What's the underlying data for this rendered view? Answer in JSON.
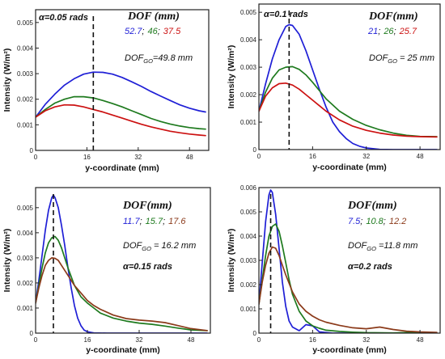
{
  "chart_data": [
    {
      "type": "line",
      "xlabel": "y-coordinate (mm)",
      "ylabel": "Intensity (W/m²)",
      "xlim": [
        0,
        54
      ],
      "ylim": [
        0,
        0.0055
      ],
      "xticks": [
        "0",
        "16",
        "32",
        "48"
      ],
      "yticks": [
        "0",
        "0.001",
        "0.002",
        "0.003",
        "0.004",
        "0.005"
      ],
      "alpha_label": "α=0.05 rads",
      "dof_header": "DOF (mm)",
      "dof_values": [
        "52.7",
        "46",
        "37.5"
      ],
      "dof_sep": ";",
      "dofgo_text": "=49.8 mm",
      "dashed_x": 18,
      "series": [
        {
          "color": "#1f1fd6",
          "x": [
            0,
            3,
            6,
            9,
            12,
            15,
            18,
            21,
            24,
            27,
            30,
            33,
            36,
            39,
            42,
            45,
            48,
            51,
            53
          ],
          "values": [
            0.0013,
            0.0018,
            0.0022,
            0.00255,
            0.0028,
            0.00298,
            0.00306,
            0.00305,
            0.00298,
            0.00285,
            0.00268,
            0.0025,
            0.0023,
            0.00212,
            0.00195,
            0.00178,
            0.00165,
            0.00155,
            0.0015
          ]
        },
        {
          "color": "#1e7a1e",
          "x": [
            0,
            3,
            6,
            9,
            12,
            15,
            18,
            21,
            24,
            27,
            30,
            33,
            36,
            39,
            42,
            45,
            48,
            51,
            53
          ],
          "values": [
            0.0013,
            0.0016,
            0.00185,
            0.002,
            0.0021,
            0.0021,
            0.00205,
            0.00195,
            0.00183,
            0.0017,
            0.00155,
            0.0014,
            0.00125,
            0.00113,
            0.00103,
            0.00095,
            0.00089,
            0.00085,
            0.00083
          ]
        },
        {
          "color": "#cc1111",
          "x": [
            0,
            3,
            6,
            9,
            12,
            15,
            18,
            21,
            24,
            27,
            30,
            33,
            36,
            39,
            42,
            45,
            48,
            51,
            53
          ],
          "values": [
            0.0013,
            0.00155,
            0.0017,
            0.00178,
            0.00177,
            0.0017,
            0.0016,
            0.0015,
            0.00138,
            0.00126,
            0.00114,
            0.00102,
            0.00092,
            0.00083,
            0.00075,
            0.00069,
            0.00064,
            0.0006,
            0.00058
          ]
        }
      ]
    },
    {
      "type": "line",
      "xlabel": "y-coordinate (mm)",
      "ylabel": "Intensity (W/m²)",
      "xlim": [
        0,
        54
      ],
      "ylim": [
        0,
        0.0053
      ],
      "xticks": [
        "0",
        "16",
        "32",
        "48"
      ],
      "yticks": [
        "0",
        "0.001",
        "0.002",
        "0.003",
        "0.004",
        "0.005"
      ],
      "alpha_label": "α=0.1 rads",
      "dof_header": "DOF(mm)",
      "dof_values": [
        "21",
        "26",
        "25.7"
      ],
      "dof_sep": ";",
      "dofgo_text": " = 25 mm",
      "dashed_x": 9,
      "series": [
        {
          "color": "#1f1fd6",
          "x": [
            0,
            2,
            4,
            6,
            8,
            9,
            10,
            12,
            14,
            16,
            18,
            20,
            22,
            24,
            26,
            28,
            30,
            32,
            36,
            40,
            48,
            53
          ],
          "values": [
            0.0014,
            0.0024,
            0.0033,
            0.004,
            0.00448,
            0.00455,
            0.00452,
            0.0042,
            0.0036,
            0.0029,
            0.0022,
            0.00155,
            0.001,
            0.00065,
            0.0004,
            0.00022,
            0.00012,
            6e-05,
            1e-05,
            0.0,
            0.0,
            0.0
          ]
        },
        {
          "color": "#1e7a1e",
          "x": [
            0,
            2,
            4,
            6,
            8,
            10,
            12,
            14,
            16,
            18,
            20,
            24,
            28,
            32,
            36,
            40,
            44,
            48,
            53
          ],
          "values": [
            0.0014,
            0.0021,
            0.0026,
            0.0029,
            0.003,
            0.00302,
            0.00292,
            0.00272,
            0.00245,
            0.00215,
            0.00185,
            0.0014,
            0.0011,
            0.00088,
            0.00072,
            0.0006,
            0.00052,
            0.00048,
            0.00047
          ]
        },
        {
          "color": "#cc1111",
          "x": [
            0,
            2,
            4,
            6,
            8,
            10,
            12,
            14,
            16,
            18,
            20,
            24,
            28,
            32,
            36,
            40,
            44,
            48,
            53
          ],
          "values": [
            0.0014,
            0.00195,
            0.00225,
            0.0024,
            0.00242,
            0.00235,
            0.0022,
            0.002,
            0.0018,
            0.0016,
            0.0014,
            0.00108,
            0.00085,
            0.0007,
            0.0006,
            0.00053,
            0.00049,
            0.00047,
            0.00046
          ]
        }
      ]
    },
    {
      "type": "line",
      "xlabel": "y-coordinate (mm)",
      "ylabel": "Intensity (W/m²)",
      "xlim": [
        0,
        54
      ],
      "ylim": [
        0,
        0.0058
      ],
      "xticks": [
        "0",
        "16",
        "32",
        "48"
      ],
      "yticks": [
        "0",
        "0.001",
        "0.002",
        "0.003",
        "0.004",
        "0.005"
      ],
      "alpha_label": "α=0.15 rads",
      "dof_header": "DOF(mm)",
      "dof_values": [
        "11.7",
        "15.7",
        "17.6"
      ],
      "dof_sep": ";",
      "dofgo_text": " = 16.2 mm",
      "dashed_x": 5.5,
      "series": [
        {
          "color": "#1f1fd6",
          "x": [
            0,
            1,
            2,
            3,
            4,
            5,
            5.5,
            6,
            7,
            8,
            9,
            10,
            11,
            12,
            13,
            14,
            15,
            16,
            18,
            22,
            30,
            53
          ],
          "values": [
            0.0012,
            0.0021,
            0.0031,
            0.0041,
            0.0049,
            0.0054,
            0.0055,
            0.0054,
            0.005,
            0.0043,
            0.0035,
            0.0026,
            0.0018,
            0.0011,
            0.0006,
            0.0003,
            0.00012,
            5e-05,
            1e-05,
            0.0,
            0.0,
            0.0
          ]
        },
        {
          "color": "#1e7a1e",
          "x": [
            0,
            1,
            2,
            3,
            4,
            5,
            6,
            7,
            8,
            9,
            10,
            12,
            14,
            16,
            18,
            20,
            24,
            28,
            32,
            36,
            40,
            44,
            48,
            53
          ],
          "values": [
            0.0012,
            0.0019,
            0.0026,
            0.0032,
            0.0036,
            0.0038,
            0.00385,
            0.0037,
            0.0034,
            0.003,
            0.0026,
            0.0019,
            0.00145,
            0.0012,
            0.001,
            0.0008,
            0.0006,
            0.00048,
            0.0004,
            0.00035,
            0.00028,
            0.0002,
            0.00013,
            0.0001
          ]
        },
        {
          "color": "#8b3a1a",
          "x": [
            0,
            1,
            2,
            3,
            4,
            5,
            6,
            7,
            8,
            10,
            12,
            14,
            16,
            18,
            20,
            24,
            28,
            32,
            36,
            40,
            44,
            48,
            53
          ],
          "values": [
            0.0012,
            0.0018,
            0.0023,
            0.0027,
            0.0029,
            0.003,
            0.00298,
            0.0029,
            0.0027,
            0.0023,
            0.0019,
            0.0016,
            0.0013,
            0.0011,
            0.00095,
            0.00072,
            0.00058,
            0.00052,
            0.00048,
            0.00042,
            0.0003,
            0.00018,
            0.0001
          ]
        }
      ]
    },
    {
      "type": "line",
      "xlabel": "y-coordinate (mm)",
      "ylabel": "Intensity (W/m²)",
      "xlim": [
        0,
        54
      ],
      "ylim": [
        0,
        0.006
      ],
      "xticks": [
        "0",
        "16",
        "32",
        "48"
      ],
      "yticks": [
        "0",
        "0.001",
        "0.002",
        "0.003",
        "0.004",
        "0.005",
        "0.006"
      ],
      "alpha_label": "α=0.2 rads",
      "dof_header": "DOF(mm)",
      "dof_values": [
        "7.5",
        "10.8",
        "12.2"
      ],
      "dof_sep": ";",
      "dofgo_text": " =11.8 mm",
      "dashed_x": 3.5,
      "series": [
        {
          "color": "#1f1fd6",
          "x": [
            0,
            1,
            2,
            3,
            3.5,
            4,
            5,
            6,
            7,
            8,
            9,
            10,
            12,
            14,
            16,
            18,
            22,
            30,
            53
          ],
          "values": [
            0.0012,
            0.0029,
            0.0046,
            0.0057,
            0.0059,
            0.0058,
            0.0049,
            0.0035,
            0.0021,
            0.0011,
            0.0005,
            0.00025,
            0.0001,
            0.00035,
            0.0003,
            5e-05,
            0.0,
            0.0,
            0.0
          ]
        },
        {
          "color": "#1e7a1e",
          "x": [
            0,
            1,
            2,
            3,
            4,
            5,
            6,
            7,
            8,
            9,
            10,
            12,
            14,
            16,
            18,
            20,
            24,
            28,
            32,
            40,
            48,
            53
          ],
          "values": [
            0.0012,
            0.0022,
            0.0032,
            0.004,
            0.0044,
            0.0045,
            0.0042,
            0.0036,
            0.0029,
            0.0022,
            0.0016,
            0.0009,
            0.0005,
            0.0003,
            0.0002,
            0.00012,
            7e-05,
            4e-05,
            2e-05,
            1e-05,
            4e-05,
            0.0
          ]
        },
        {
          "color": "#8b3a1a",
          "x": [
            0,
            1,
            2,
            3,
            4,
            5,
            6,
            7,
            8,
            10,
            12,
            14,
            16,
            18,
            20,
            24,
            28,
            32,
            36,
            40,
            44,
            48,
            53
          ],
          "values": [
            0.0012,
            0.0021,
            0.0028,
            0.0033,
            0.00355,
            0.0035,
            0.0032,
            0.0028,
            0.0024,
            0.0017,
            0.0012,
            0.0009,
            0.0007,
            0.00055,
            0.00045,
            0.00032,
            0.00022,
            0.00018,
            0.00025,
            0.00015,
            8e-05,
            5e-05,
            3e-05
          ]
        }
      ]
    }
  ]
}
